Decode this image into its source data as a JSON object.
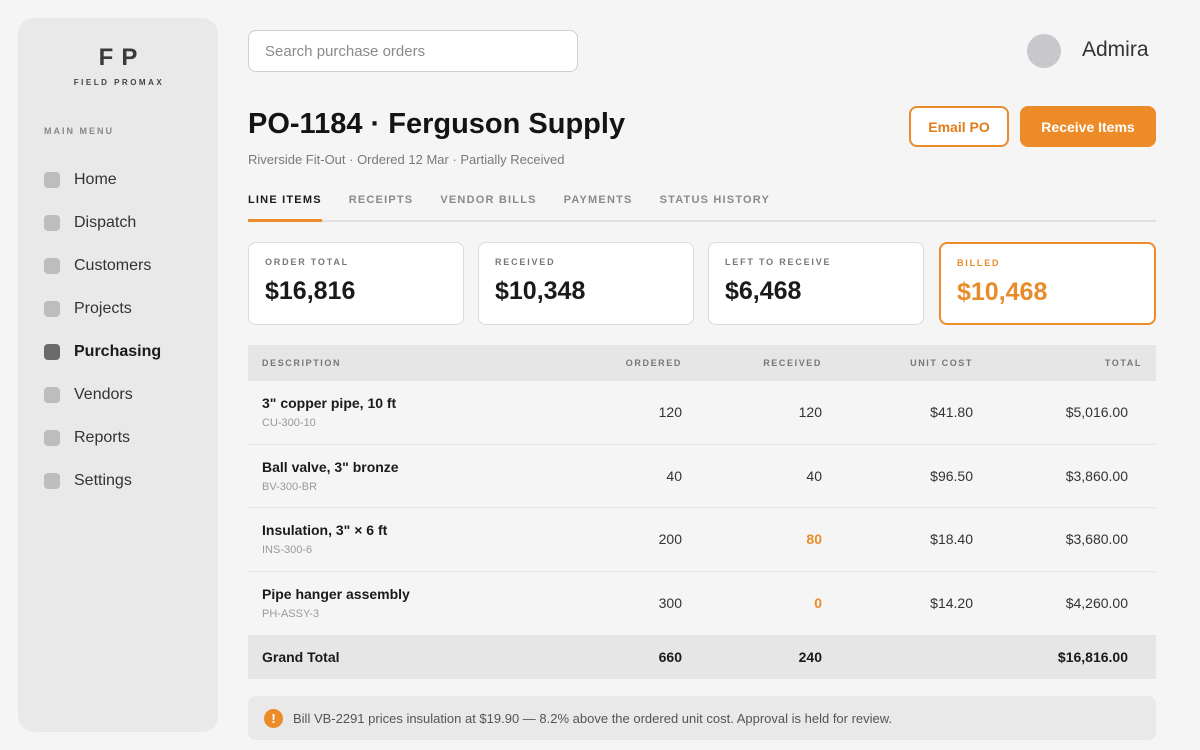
{
  "brand": {
    "mark": "FP",
    "name": "FIELD PROMAX"
  },
  "sidebar": {
    "heading": "MAIN MENU",
    "items": [
      {
        "label": "Home",
        "icon": "home-icon"
      },
      {
        "label": "Dispatch",
        "icon": "dispatch-icon"
      },
      {
        "label": "Customers",
        "icon": "customers-icon"
      },
      {
        "label": "Projects",
        "icon": "projects-icon"
      },
      {
        "label": "Purchasing",
        "icon": "purchasing-icon",
        "active": true
      },
      {
        "label": "Vendors",
        "icon": "vendors-icon"
      },
      {
        "label": "Reports",
        "icon": "reports-icon"
      },
      {
        "label": "Settings",
        "icon": "settings-icon"
      }
    ]
  },
  "search": {
    "placeholder": "Search purchase orders",
    "value": ""
  },
  "user": {
    "name": "Admira"
  },
  "header": {
    "title": "PO-1184 · Ferguson Supply",
    "subtitle": "Riverside Fit-Out · Ordered 12 Mar · Partially Received",
    "email_label": "Email PO",
    "receive_label": "Receive Items"
  },
  "tabs": [
    {
      "label": "LINE ITEMS",
      "active": true
    },
    {
      "label": "RECEIPTS"
    },
    {
      "label": "VENDOR BILLS"
    },
    {
      "label": "PAYMENTS"
    },
    {
      "label": "STATUS HISTORY"
    }
  ],
  "summary": [
    {
      "label": "ORDER TOTAL",
      "value": "$16,816"
    },
    {
      "label": "RECEIVED",
      "value": "$10,348"
    },
    {
      "label": "LEFT TO RECEIVE",
      "value": "$6,468"
    },
    {
      "label": "BILLED",
      "value": "$10,468",
      "highlight": true
    }
  ],
  "table": {
    "headers": {
      "description": "DESCRIPTION",
      "ordered": "ORDERED",
      "received": "RECEIVED",
      "unit_cost": "UNIT COST",
      "total": "TOTAL"
    },
    "rows": [
      {
        "name": "3\" copper pipe, 10 ft",
        "sku": "CU-300-10",
        "ordered": "120",
        "received": "120",
        "unit_cost": "$41.80",
        "total": "$5,016.00",
        "short": false
      },
      {
        "name": "Ball valve, 3\" bronze",
        "sku": "BV-300-BR",
        "ordered": "40",
        "received": "40",
        "unit_cost": "$96.50",
        "total": "$3,860.00",
        "short": false
      },
      {
        "name": "Insulation, 3\" × 6 ft",
        "sku": "INS-300-6",
        "ordered": "200",
        "received": "80",
        "unit_cost": "$18.40",
        "total": "$3,680.00",
        "short": true
      },
      {
        "name": "Pipe hanger assembly",
        "sku": "PH-ASSY-3",
        "ordered": "300",
        "received": "0",
        "unit_cost": "$14.20",
        "total": "$4,260.00",
        "short": true
      }
    ],
    "grand_total": {
      "label": "Grand Total",
      "ordered": "660",
      "received": "240",
      "total": "$16,816.00"
    }
  },
  "alert": {
    "icon": "warning-icon",
    "glyph": "!",
    "text": "Bill VB-2291 prices insulation at $19.90 — 8.2% above the ordered unit cost. Approval is held for review."
  },
  "colors": {
    "accent": "#ec8b28",
    "sidebar_bg": "#e9e9e9",
    "page_bg": "#f5f5f5"
  }
}
